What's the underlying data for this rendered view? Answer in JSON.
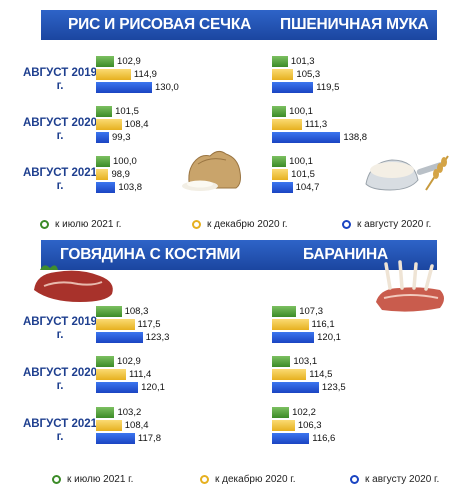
{
  "legend": [
    "к июлю 2021 г.",
    "к декабрю 2020 г.",
    "к августу 2020 г."
  ],
  "colors": {
    "green": "#3b8b27",
    "yellow": "#e6b01f",
    "blue": "#1a44c2",
    "band": "#1f4ea8"
  },
  "chart_data": [
    {
      "type": "bar",
      "title": "РИС И РИСОВАЯ СЕЧКА",
      "categories": [
        "АВГУСТ 2019 г.",
        "АВГУСТ 2020 г.",
        "АВГУСТ 2021 г."
      ],
      "series": [
        {
          "name": "к июлю 2021 г.",
          "values": [
            102.9,
            101.5,
            100.0
          ],
          "labels": [
            "102,9",
            "101,5",
            "100,0"
          ]
        },
        {
          "name": "к декабрю 2020 г.",
          "values": [
            114.9,
            108.4,
            98.9
          ],
          "labels": [
            "114,9",
            "108,4",
            "98,9"
          ]
        },
        {
          "name": "к августу 2020 г.",
          "values": [
            130.0,
            99.3,
            103.8
          ],
          "labels": [
            "130,0",
            "99,3",
            "103,8"
          ]
        }
      ]
    },
    {
      "type": "bar",
      "title": "ПШЕНИЧНАЯ МУКА",
      "categories": [
        "АВГУСТ 2019 г.",
        "АВГУСТ 2020 г.",
        "АВГУСТ 2021 г."
      ],
      "series": [
        {
          "name": "к июлю 2021 г.",
          "values": [
            101.3,
            100.1,
            100.1
          ],
          "labels": [
            "101,3",
            "100,1",
            "100,1"
          ]
        },
        {
          "name": "к декабрю 2020 г.",
          "values": [
            105.3,
            111.3,
            101.5
          ],
          "labels": [
            "105,3",
            "111,3",
            "101,5"
          ]
        },
        {
          "name": "к августу 2020 г.",
          "values": [
            119.5,
            138.8,
            104.7
          ],
          "labels": [
            "119,5",
            "138,8",
            "104,7"
          ]
        }
      ]
    },
    {
      "type": "bar",
      "title": "ГОВЯДИНА С КОСТЯМИ",
      "categories": [
        "АВГУСТ 2019 г.",
        "АВГУСТ 2020 г.",
        "АВГУСТ 2021 г."
      ],
      "series": [
        {
          "name": "к июлю 2021 г.",
          "values": [
            108.3,
            102.9,
            103.2
          ],
          "labels": [
            "108,3",
            "102,9",
            "103,2"
          ]
        },
        {
          "name": "к декабрю 2020 г.",
          "values": [
            117.5,
            111.4,
            108.4
          ],
          "labels": [
            "117,5",
            "111,4",
            "108,4"
          ]
        },
        {
          "name": "к августу 2020 г.",
          "values": [
            123.3,
            120.1,
            117.8
          ],
          "labels": [
            "123,3",
            "120,1",
            "117,8"
          ]
        }
      ]
    },
    {
      "type": "bar",
      "title": "БАРАНИНА",
      "categories": [
        "АВГУСТ 2019 г.",
        "АВГУСТ 2020 г.",
        "АВГУСТ 2021 г."
      ],
      "series": [
        {
          "name": "к июлю 2021 г.",
          "values": [
            107.3,
            103.1,
            102.2
          ],
          "labels": [
            "107,3",
            "103,1",
            "102,2"
          ]
        },
        {
          "name": "к декабрю 2020 г.",
          "values": [
            116.1,
            114.5,
            106.3
          ],
          "labels": [
            "116,1",
            "114,5",
            "106,3"
          ]
        },
        {
          "name": "к августу 2020 г.",
          "values": [
            120.1,
            123.5,
            116.6
          ],
          "labels": [
            "120,1",
            "123,5",
            "116,6"
          ]
        }
      ]
    }
  ]
}
